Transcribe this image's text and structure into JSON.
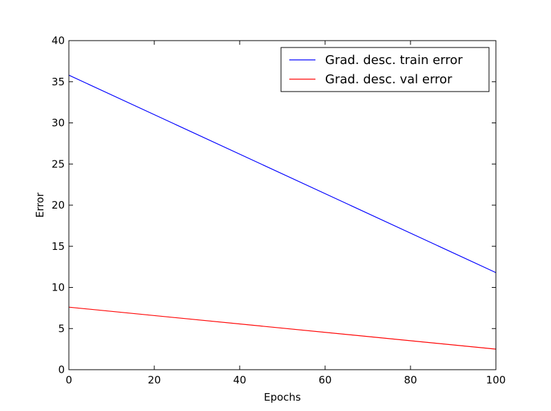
{
  "chart_data": {
    "type": "line",
    "title": "",
    "xlabel": "Epochs",
    "ylabel": "Error",
    "xlim": [
      0,
      100
    ],
    "ylim": [
      0,
      40
    ],
    "xticks": [
      0,
      20,
      40,
      60,
      80,
      100
    ],
    "yticks": [
      0,
      5,
      10,
      15,
      20,
      25,
      30,
      35,
      40
    ],
    "xtick_labels": [
      "0",
      "20",
      "40",
      "60",
      "80",
      "100"
    ],
    "ytick_labels": [
      "0",
      "5",
      "10",
      "15",
      "20",
      "25",
      "30",
      "35",
      "40"
    ],
    "grid": false,
    "legend_position": "top-right",
    "series": [
      {
        "name": "Grad. desc.  train error",
        "color": "#0000ff",
        "x": [
          0,
          100
        ],
        "y": [
          35.8,
          11.8
        ]
      },
      {
        "name": "Grad. desc.  val error",
        "color": "#ff0000",
        "x": [
          0,
          100
        ],
        "y": [
          7.6,
          2.5
        ]
      }
    ]
  }
}
